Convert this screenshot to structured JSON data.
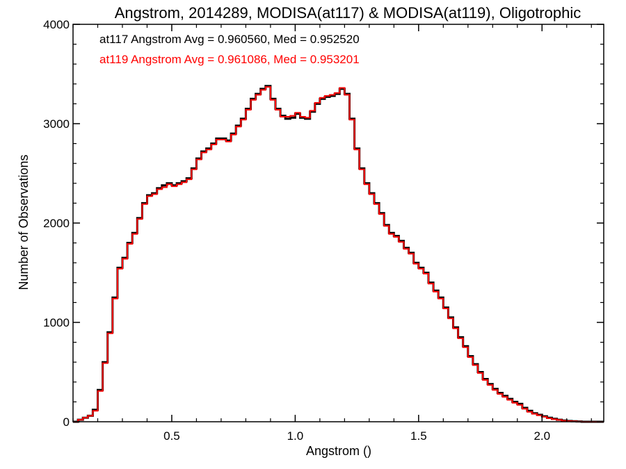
{
  "chart_data": {
    "type": "line",
    "title": "Angstrom, 2014289, MODISA(at117) & MODISA(at119), Oligotrophic",
    "xlabel": "Angstrom ()",
    "ylabel": "Number of Observations",
    "xlim": [
      0.1,
      2.25
    ],
    "ylim": [
      0,
      4000
    ],
    "x_ticks": [
      0.5,
      1.0,
      1.5,
      2.0
    ],
    "x_tick_labels": [
      "0.5",
      "1.0",
      "1.5",
      "2.0"
    ],
    "y_ticks": [
      0,
      1000,
      2000,
      3000,
      4000
    ],
    "y_tick_labels": [
      "0",
      "1000",
      "2000",
      "3000",
      "4000"
    ],
    "grid": false,
    "step": true,
    "legend_placement": "top-left",
    "annotations": [
      {
        "text": "at117 Angstrom Avg = 0.960560, Med = 0.952520",
        "color": "#000000"
      },
      {
        "text": "at119 Angstrom Avg = 0.961086, Med = 0.953201",
        "color": "#ff0000"
      }
    ],
    "x": [
      0.1,
      0.12,
      0.14,
      0.16,
      0.18,
      0.2,
      0.22,
      0.24,
      0.26,
      0.28,
      0.3,
      0.32,
      0.34,
      0.36,
      0.38,
      0.4,
      0.42,
      0.44,
      0.46,
      0.48,
      0.5,
      0.52,
      0.54,
      0.56,
      0.58,
      0.6,
      0.62,
      0.64,
      0.66,
      0.68,
      0.7,
      0.72,
      0.74,
      0.76,
      0.78,
      0.8,
      0.82,
      0.84,
      0.86,
      0.88,
      0.9,
      0.92,
      0.94,
      0.96,
      0.98,
      1.0,
      1.02,
      1.04,
      1.06,
      1.08,
      1.1,
      1.12,
      1.14,
      1.16,
      1.18,
      1.2,
      1.22,
      1.24,
      1.26,
      1.28,
      1.3,
      1.32,
      1.34,
      1.36,
      1.38,
      1.4,
      1.42,
      1.44,
      1.46,
      1.48,
      1.5,
      1.52,
      1.54,
      1.56,
      1.58,
      1.6,
      1.62,
      1.64,
      1.66,
      1.68,
      1.7,
      1.72,
      1.74,
      1.76,
      1.78,
      1.8,
      1.82,
      1.84,
      1.86,
      1.88,
      1.9,
      1.92,
      1.94,
      1.96,
      1.98,
      2.0,
      2.02,
      2.04,
      2.06,
      2.08,
      2.1,
      2.12,
      2.14,
      2.16,
      2.18,
      2.2,
      2.22,
      2.24
    ],
    "series": [
      {
        "color": "#000000",
        "values": [
          0,
          20,
          40,
          60,
          120,
          320,
          600,
          900,
          1250,
          1550,
          1650,
          1800,
          1900,
          2050,
          2200,
          2280,
          2300,
          2350,
          2380,
          2400,
          2380,
          2400,
          2420,
          2450,
          2550,
          2650,
          2720,
          2750,
          2800,
          2850,
          2850,
          2830,
          2900,
          2980,
          3050,
          3150,
          3250,
          3300,
          3350,
          3380,
          3250,
          3150,
          3080,
          3050,
          3060,
          3100,
          3060,
          3050,
          3120,
          3200,
          3250,
          3270,
          3280,
          3300,
          3350,
          3300,
          3050,
          2750,
          2550,
          2400,
          2300,
          2200,
          2100,
          1980,
          1900,
          1870,
          1820,
          1750,
          1700,
          1600,
          1550,
          1500,
          1400,
          1320,
          1250,
          1150,
          1050,
          950,
          850,
          760,
          660,
          580,
          500,
          430,
          380,
          330,
          290,
          260,
          230,
          200,
          180,
          140,
          110,
          85,
          70,
          55,
          40,
          30,
          20,
          12,
          8,
          5,
          3,
          0,
          0,
          0,
          0,
          0
        ],
        "name": "at117"
      },
      {
        "color": "#ff0000",
        "values": [
          0,
          20,
          40,
          60,
          110,
          310,
          590,
          890,
          1240,
          1540,
          1640,
          1790,
          1890,
          2040,
          2190,
          2270,
          2290,
          2340,
          2360,
          2390,
          2370,
          2390,
          2410,
          2440,
          2540,
          2640,
          2710,
          2740,
          2790,
          2840,
          2840,
          2820,
          2890,
          2970,
          3040,
          3140,
          3240,
          3290,
          3340,
          3370,
          3240,
          3140,
          3070,
          3070,
          3080,
          3110,
          3070,
          3060,
          3130,
          3210,
          3260,
          3280,
          3290,
          3310,
          3360,
          3290,
          3040,
          2740,
          2540,
          2390,
          2290,
          2190,
          2090,
          1970,
          1890,
          1860,
          1810,
          1740,
          1690,
          1590,
          1540,
          1490,
          1390,
          1310,
          1240,
          1140,
          1040,
          940,
          840,
          750,
          650,
          570,
          490,
          420,
          370,
          320,
          280,
          250,
          220,
          190,
          170,
          130,
          100,
          80,
          65,
          50,
          35,
          25,
          18,
          10,
          6,
          4,
          2,
          0,
          0,
          0,
          0,
          0
        ],
        "name": "at119"
      }
    ]
  }
}
